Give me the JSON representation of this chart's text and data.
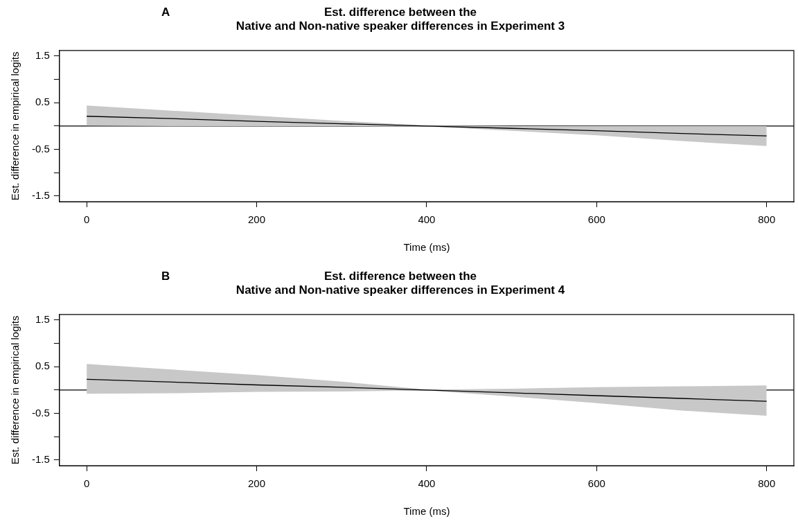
{
  "chart_data": [
    {
      "type": "line",
      "title": "Est. difference between the\nNative and Non-native speaker differences in Experiment 3",
      "xlabel": "Time (ms)",
      "ylabel": "Est. difference in empirical logits",
      "annotations": [
        "A"
      ],
      "x": [
        0,
        100,
        200,
        300,
        400,
        500,
        600,
        700,
        800
      ],
      "series": [
        {
          "color": "#000000",
          "values": [
            0.21,
            0.16,
            0.1,
            0.05,
            0,
            -0.05,
            -0.1,
            -0.16,
            -0.21
          ],
          "lower": [
            0.01,
            0,
            0,
            0,
            -0.01,
            -0.1,
            -0.2,
            -0.32,
            -0.43
          ],
          "upper": [
            0.44,
            0.33,
            0.22,
            0.11,
            0.01,
            0,
            0,
            0,
            0
          ]
        }
      ],
      "xlim": [
        -32,
        832
      ],
      "xticks": [
        0,
        200,
        400,
        600,
        800
      ],
      "ylim": [
        -1.62,
        1.62
      ],
      "yticks": [
        -1.5,
        {
          "value": -1,
          "label": null
        },
        -0.5,
        {
          "value": 0,
          "label": null
        },
        0.5,
        {
          "value": 1,
          "label": null
        },
        1.5
      ],
      "ref_lines": [
        {
          "axis": "y",
          "value": 0,
          "color": "#000000"
        }
      ],
      "grid": false,
      "legend": false,
      "marker": "none",
      "line_style": "solid"
    },
    {
      "type": "line",
      "title": "Est. difference between the\nNative and Non-native speaker differences in Experiment 4",
      "xlabel": "Time (ms)",
      "ylabel": "Est. difference in empirical logits",
      "annotations": [
        "B"
      ],
      "x": [
        0,
        100,
        200,
        300,
        400,
        500,
        600,
        700,
        800
      ],
      "series": [
        {
          "color": "#000000",
          "values": [
            0.23,
            0.17,
            0.11,
            0.06,
            0,
            -0.06,
            -0.12,
            -0.18,
            -0.24
          ],
          "lower": [
            -0.08,
            -0.07,
            -0.04,
            -0.03,
            -0.01,
            -0.14,
            -0.28,
            -0.44,
            -0.55
          ],
          "upper": [
            0.56,
            0.44,
            0.32,
            0.18,
            0.01,
            0.03,
            0.06,
            0.08,
            0.1
          ]
        }
      ],
      "xlim": [
        -32,
        832
      ],
      "xticks": [
        0,
        200,
        400,
        600,
        800
      ],
      "ylim": [
        -1.62,
        1.62
      ],
      "yticks": [
        -1.5,
        {
          "value": -1,
          "label": null
        },
        -0.5,
        {
          "value": 0,
          "label": null
        },
        0.5,
        {
          "value": 1,
          "label": null
        },
        1.5
      ],
      "ref_lines": [
        {
          "axis": "y",
          "value": 0,
          "color": "#000000"
        }
      ],
      "grid": false,
      "legend": false,
      "marker": "none",
      "line_style": "solid"
    }
  ]
}
